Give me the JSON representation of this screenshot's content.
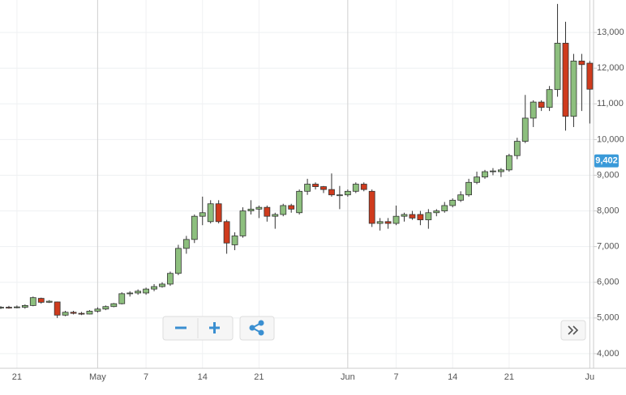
{
  "chart_data": {
    "type": "candlestick",
    "categories": [
      null,
      null,
      "21",
      null,
      null,
      null,
      null,
      null,
      null,
      null,
      null,
      null,
      "May",
      null,
      null,
      null,
      null,
      null,
      "7",
      null,
      null,
      null,
      null,
      null,
      null,
      "14",
      null,
      null,
      null,
      null,
      null,
      null,
      "21",
      null,
      null,
      null,
      null,
      null,
      null,
      null,
      null,
      null,
      null,
      "Jun",
      null,
      null,
      null,
      null,
      null,
      "7",
      null,
      null,
      null,
      null,
      null,
      null,
      "14",
      null,
      null,
      null,
      null,
      null,
      null,
      "21",
      null,
      null,
      null,
      null,
      null,
      null,
      null,
      null,
      null,
      "Ju"
    ],
    "open": [
      5280,
      5300,
      5290,
      5300,
      5350,
      5550,
      5440,
      5450,
      5080,
      5160,
      5130,
      5110,
      5190,
      5250,
      5320,
      5400,
      5680,
      5700,
      5700,
      5810,
      5880,
      5950,
      6250,
      6950,
      7200,
      7850,
      7700,
      8200,
      7700,
      7050,
      7300,
      8000,
      8050,
      8100,
      7850,
      7900,
      8150,
      7950,
      8550,
      8750,
      8680,
      8600,
      8450,
      8450,
      8550,
      8750,
      8550,
      7650,
      7700,
      7650,
      7850,
      7900,
      7900,
      7750,
      7950,
      8000,
      8150,
      8300,
      8450,
      8800,
      8950,
      9100,
      9100,
      9150,
      9550,
      9950,
      10600,
      11050,
      10900,
      11400,
      12700,
      10650,
      12200,
      12140
    ],
    "high": [
      5330,
      5340,
      5350,
      5380,
      5600,
      5570,
      5500,
      5460,
      5200,
      5200,
      5170,
      5220,
      5300,
      5350,
      5420,
      5720,
      5750,
      5800,
      5850,
      5950,
      6000,
      6300,
      7050,
      7300,
      7900,
      8400,
      8300,
      8300,
      7750,
      7400,
      8100,
      8300,
      8150,
      8150,
      7950,
      8200,
      8200,
      8600,
      8900,
      8800,
      8700,
      9050,
      8700,
      8600,
      8800,
      8800,
      8600,
      7800,
      7800,
      8150,
      7950,
      8000,
      8000,
      8050,
      8050,
      8250,
      8350,
      8550,
      8900,
      9100,
      9150,
      9200,
      9200,
      9600,
      10050,
      11250,
      11100,
      11100,
      11500,
      13800,
      13300,
      12400,
      12400,
      12200
    ],
    "low": [
      5250,
      5260,
      5270,
      5260,
      5330,
      5400,
      5420,
      5000,
      5050,
      5100,
      5080,
      5100,
      5150,
      5220,
      5300,
      5380,
      5600,
      5650,
      5650,
      5750,
      5850,
      5900,
      6200,
      6800,
      7100,
      7600,
      7650,
      7650,
      6800,
      6900,
      7250,
      7900,
      7800,
      7700,
      7500,
      7850,
      7950,
      7900,
      8450,
      8600,
      8500,
      8400,
      8050,
      8400,
      8500,
      8550,
      7550,
      7450,
      7500,
      7600,
      7700,
      7750,
      7600,
      7500,
      7850,
      7950,
      8100,
      8250,
      8400,
      8750,
      8900,
      9000,
      8950,
      9100,
      9450,
      9900,
      10350,
      10800,
      10800,
      11200,
      10250,
      10350,
      10800,
      10450
    ],
    "close": [
      5300,
      5290,
      5310,
      5350,
      5570,
      5440,
      5470,
      5080,
      5160,
      5130,
      5110,
      5190,
      5250,
      5320,
      5400,
      5680,
      5700,
      5750,
      5810,
      5880,
      5950,
      6250,
      6950,
      7200,
      7850,
      7950,
      8200,
      7700,
      7100,
      7300,
      8000,
      8050,
      8100,
      7850,
      7900,
      8150,
      8050,
      8550,
      8750,
      8680,
      8600,
      8450,
      8450,
      8550,
      8750,
      8600,
      7650,
      7700,
      7650,
      7850,
      7900,
      7800,
      7750,
      7950,
      8000,
      8150,
      8300,
      8450,
      8800,
      8950,
      9100,
      9120,
      9150,
      9550,
      9950,
      10600,
      11050,
      10900,
      11400,
      12700,
      10650,
      12200,
      12100,
      11410
    ],
    "up_color": "#8dbf7e",
    "down_color": "#cf3b1d",
    "ylim": [
      3590,
      13910
    ],
    "yticks": [
      {
        "value": 4000,
        "label": "4,000"
      },
      {
        "value": 5000,
        "label": "5,000"
      },
      {
        "value": 6000,
        "label": "6,000"
      },
      {
        "value": 7000,
        "label": "7,000"
      },
      {
        "value": 8000,
        "label": "8,000"
      },
      {
        "value": 9000,
        "label": "9,000"
      },
      {
        "value": 10000,
        "label": "10,000"
      },
      {
        "value": 11000,
        "label": "11,000"
      },
      {
        "value": 12000,
        "label": "12,000"
      },
      {
        "value": 13000,
        "label": "13,000"
      }
    ],
    "last_price": {
      "value": 9402,
      "label": "9,402"
    },
    "grid": true
  }
}
